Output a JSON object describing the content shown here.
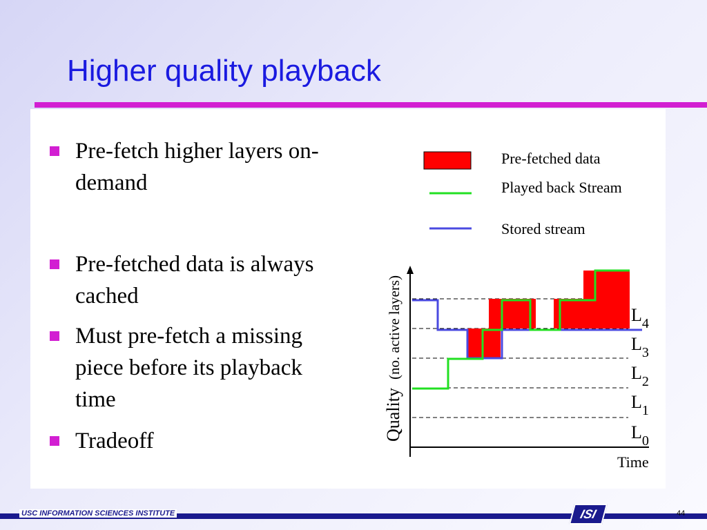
{
  "title": "Higher quality playback",
  "bullets": [
    {
      "text": "Pre-fetch higher layers on-demand"
    },
    {
      "text": "Pre-fetched data is always cached"
    },
    {
      "text": "Must pre-fetch a missing piece before its playback time"
    },
    {
      "text": "Tradeoff"
    }
  ],
  "legend": {
    "prefetched": "Pre-fetched data",
    "played": "Played back Stream",
    "stored": "Stored stream"
  },
  "axes": {
    "y_label_main": "Quality",
    "y_label_sub": "(no. active layers)",
    "x_label": "Time"
  },
  "layers": [
    {
      "base": "L",
      "sub": "0"
    },
    {
      "base": "L",
      "sub": "1"
    },
    {
      "base": "L",
      "sub": "2"
    },
    {
      "base": "L",
      "sub": "3"
    },
    {
      "base": "L",
      "sub": "4"
    }
  ],
  "colors": {
    "title": "#1a1ae0",
    "accent": "#d21fd2",
    "prefetched": "#ff0000",
    "played": "#22e022",
    "stored": "#4a4ae0",
    "footer": "#1a1a8e"
  },
  "footer": {
    "institute": "USC INFORMATION SCIENCES INSTITUTE",
    "page": "44",
    "logo": "ISI"
  }
}
